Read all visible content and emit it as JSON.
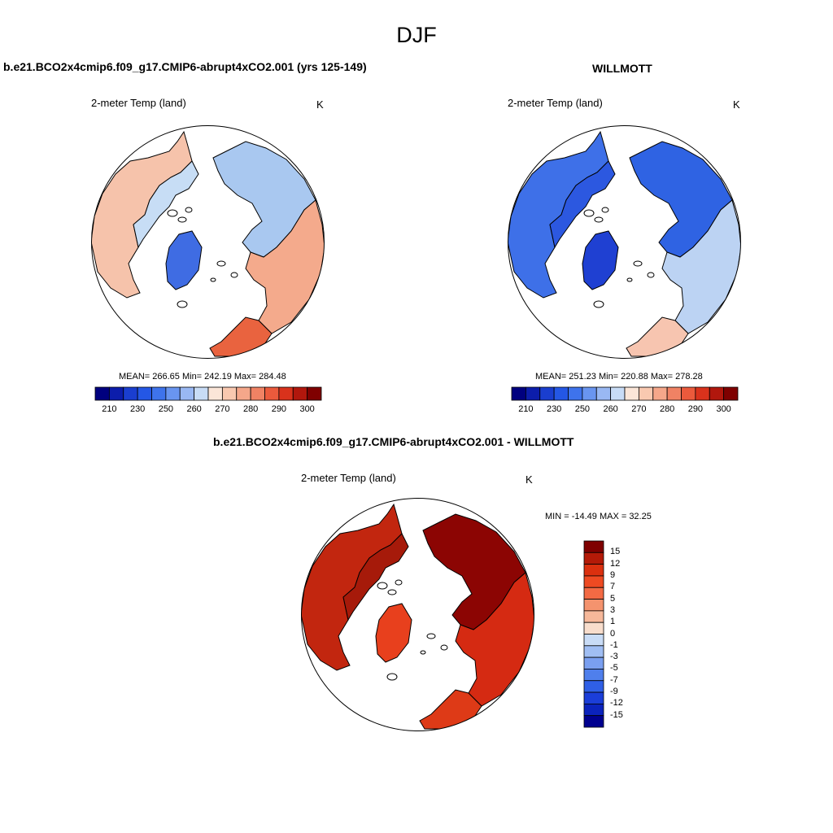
{
  "page": {
    "title": "DJF",
    "units": "K"
  },
  "panel_model": {
    "header": "b.e21.BCO2x4cmip6.f09_g17.CMIP6-abrupt4xCO2.001 (yrs 125-149)",
    "variable": "2-meter Temp (land)",
    "units": "K",
    "stats": "MEAN= 266.65  Min= 242.19  Max= 284.48",
    "ocean_color": "#ffffff",
    "regions": [
      {
        "name": "north-america",
        "color": "#f6c3ab"
      },
      {
        "name": "canadian-arctic",
        "color": "#c7ddf5"
      },
      {
        "name": "greenland",
        "color": "#3f6ce3"
      },
      {
        "name": "siberia",
        "color": "#a9c8f0"
      },
      {
        "name": "eurasia-south",
        "color": "#f4aa8c"
      },
      {
        "name": "europe",
        "color": "#e9633f"
      }
    ]
  },
  "panel_obs": {
    "header": "WILLMOTT",
    "variable": "2-meter Temp (land)",
    "units": "K",
    "stats": "MEAN= 251.23  Min= 220.88  Max= 278.28",
    "regions": [
      {
        "name": "north-america",
        "color": "#3e70e8"
      },
      {
        "name": "canadian-arctic",
        "color": "#2c58e0"
      },
      {
        "name": "greenland",
        "color": "#1f40d2"
      },
      {
        "name": "siberia",
        "color": "#2f63e3"
      },
      {
        "name": "eurasia-south",
        "color": "#bcd3f3"
      },
      {
        "name": "europe",
        "color": "#f7c5b0"
      }
    ]
  },
  "panel_diff": {
    "header": "b.e21.BCO2x4cmip6.f09_g17.CMIP6-abrupt4xCO2.001 - WILLMOTT",
    "variable": "2-meter Temp (land)",
    "units": "K",
    "stats": "MIN = -14.49 MAX =  32.25",
    "regions": [
      {
        "name": "north-america",
        "color": "#c2260f"
      },
      {
        "name": "canadian-arctic",
        "color": "#a61a0a"
      },
      {
        "name": "greenland",
        "color": "#e8401d"
      },
      {
        "name": "siberia",
        "color": "#8c0503"
      },
      {
        "name": "eurasia-south",
        "color": "#d52a12"
      },
      {
        "name": "europe",
        "color": "#de3a17"
      }
    ]
  },
  "abs_colorbar": {
    "colors": [
      "#00007f",
      "#0c1dab",
      "#1a3ecf",
      "#2457e5",
      "#3e73ec",
      "#6995f0",
      "#99b8f3",
      "#c8dcf6",
      "#fbe6d8",
      "#f9c9b0",
      "#f5a78a",
      "#f08264",
      "#eb5a3c",
      "#d9321c",
      "#b1170d",
      "#7f0000"
    ],
    "tick_labels": [
      "210",
      "230",
      "250",
      "260",
      "270",
      "280",
      "290",
      "300"
    ]
  },
  "diff_colorbar": {
    "colors": [
      "#7f0000",
      "#b41a08",
      "#db300f",
      "#ee4a22",
      "#f36a44",
      "#f4936e",
      "#f6b89a",
      "#f8ddcc",
      "#c9dcf6",
      "#a0bef3",
      "#7a9ff0",
      "#4f7fec",
      "#2f5fe6",
      "#1b3ed9",
      "#0b23bd",
      "#00008f"
    ],
    "tick_labels": [
      "15",
      "12",
      "9",
      "7",
      "5",
      "3",
      "1",
      "0",
      "-1",
      "-3",
      "-5",
      "-7",
      "-9",
      "-12",
      "-15"
    ]
  }
}
